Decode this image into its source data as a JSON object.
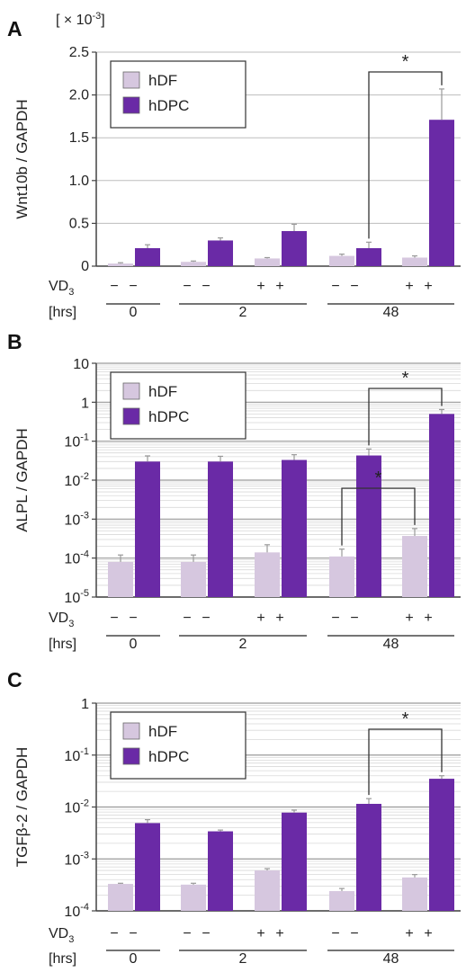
{
  "colors": {
    "hDF": "#d6c7df",
    "hDPC": "#6a2aa6",
    "grid": "#bdbdbd",
    "axis": "#444444",
    "error": "#999999"
  },
  "condition_rows": {
    "vd_label": "VD",
    "vd_sub": "3",
    "hrs_label": "[hrs]",
    "vd_signs": [
      "−",
      "−",
      "−",
      "−",
      "+",
      "+",
      "−",
      "−",
      "+",
      "+"
    ],
    "hrs_groups": [
      "0",
      "2",
      "48"
    ]
  },
  "chart_data": [
    {
      "type": "bar",
      "panel": "A",
      "multiplier": "[ × 10",
      "multiplier_sup": "-3",
      "multiplier_close": "]",
      "ylabel": "Wnt10b / GAPDH",
      "scale": "linear",
      "ylim": [
        0,
        2.5
      ],
      "yticks": [
        "0",
        "0.5",
        "1.0",
        "1.5",
        "2.0",
        "2.5"
      ],
      "grid": true,
      "legend": {
        "position": "top-left",
        "entries": [
          "hDF",
          "hDPC"
        ]
      },
      "categories": [
        "0h −VD3",
        "2h −VD3",
        "2h +VD3",
        "48h −VD3",
        "48h +VD3"
      ],
      "series": [
        {
          "name": "hDF",
          "values": [
            0.03,
            0.05,
            0.09,
            0.12,
            0.1
          ],
          "errors": [
            0.01,
            0.01,
            0.01,
            0.02,
            0.02
          ]
        },
        {
          "name": "hDPC",
          "values": [
            0.21,
            0.3,
            0.41,
            0.21,
            1.71
          ],
          "errors": [
            0.04,
            0.03,
            0.08,
            0.07,
            0.36
          ]
        }
      ],
      "significance": [
        {
          "label": "*",
          "from": [
            3,
            "hDPC"
          ],
          "to": [
            4,
            "hDPC"
          ]
        }
      ]
    },
    {
      "type": "bar",
      "panel": "B",
      "ylabel": "ALPL / GAPDH",
      "scale": "log",
      "ylim": [
        1e-05,
        10
      ],
      "yticks": [
        {
          "base": "10",
          "exp": "-5"
        },
        {
          "base": "10",
          "exp": "-4"
        },
        {
          "base": "10",
          "exp": "-3"
        },
        {
          "base": "10",
          "exp": "-2"
        },
        {
          "base": "10",
          "exp": "-1"
        },
        {
          "base": "1",
          "exp": ""
        },
        {
          "base": "10",
          "exp": ""
        }
      ],
      "grid": true,
      "legend": {
        "position": "top-left",
        "entries": [
          "hDF",
          "hDPC"
        ]
      },
      "categories": [
        "0h −VD3",
        "2h −VD3",
        "2h +VD3",
        "48h −VD3",
        "48h +VD3"
      ],
      "series": [
        {
          "name": "hDF",
          "values": [
            8e-05,
            8e-05,
            0.00014,
            0.00011,
            0.00037
          ],
          "errors": [
            4e-05,
            4e-05,
            8e-05,
            6e-05,
            0.0002
          ]
        },
        {
          "name": "hDPC",
          "values": [
            0.03,
            0.03,
            0.033,
            0.043,
            0.5
          ],
          "errors": [
            0.012,
            0.011,
            0.012,
            0.02,
            0.15
          ]
        }
      ],
      "significance": [
        {
          "label": "*",
          "from": [
            3,
            "hDPC"
          ],
          "to": [
            4,
            "hDPC"
          ]
        },
        {
          "label": "*",
          "from": [
            3,
            "hDF"
          ],
          "to": [
            4,
            "hDF"
          ]
        }
      ]
    },
    {
      "type": "bar",
      "panel": "C",
      "ylabel": "TGFβ-2 / GAPDH",
      "scale": "log",
      "ylim": [
        0.0001,
        1
      ],
      "yticks": [
        {
          "base": "10",
          "exp": "-4"
        },
        {
          "base": "10",
          "exp": "-3"
        },
        {
          "base": "10",
          "exp": "-2"
        },
        {
          "base": "10",
          "exp": "-1"
        },
        {
          "base": "1",
          "exp": ""
        }
      ],
      "grid": true,
      "legend": {
        "position": "top-left",
        "entries": [
          "hDF",
          "hDPC"
        ]
      },
      "categories": [
        "0h −VD3",
        "2h −VD3",
        "2h +VD3",
        "48h −VD3",
        "48h +VD3"
      ],
      "series": [
        {
          "name": "hDF",
          "values": [
            0.00033,
            0.00032,
            0.0006,
            0.00024,
            0.00044
          ],
          "errors": [
            1e-05,
            2e-05,
            5e-05,
            3e-05,
            6e-05
          ]
        },
        {
          "name": "hDPC",
          "values": [
            0.0049,
            0.0034,
            0.0078,
            0.0115,
            0.035
          ],
          "errors": [
            0.0008,
            0.0002,
            0.0009,
            0.003,
            0.005
          ]
        }
      ],
      "significance": [
        {
          "label": "*",
          "from": [
            3,
            "hDPC"
          ],
          "to": [
            4,
            "hDPC"
          ]
        }
      ]
    }
  ]
}
